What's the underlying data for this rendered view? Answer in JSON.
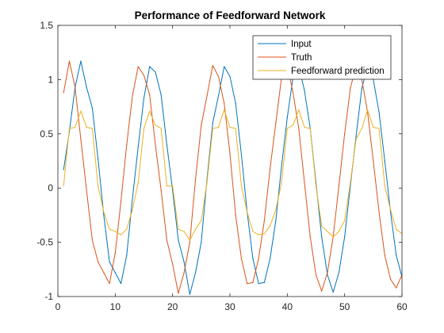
{
  "chart_data": {
    "type": "line",
    "title": "Performance of Feedforward Network",
    "xlabel": "",
    "ylabel": "",
    "xlim": [
      0,
      60
    ],
    "ylim": [
      -1,
      1.5
    ],
    "xticks": [
      0,
      10,
      20,
      30,
      40,
      50,
      60
    ],
    "yticks": [
      -1,
      -0.5,
      0,
      0.5,
      1,
      1.5
    ],
    "grid": false,
    "legend_position": "top-right",
    "series": [
      {
        "name": "Input",
        "color": "#0072BD",
        "x": [
          1,
          2,
          3,
          4,
          5,
          6,
          7,
          8,
          9,
          10,
          11,
          12,
          13,
          14,
          15,
          16,
          17,
          18,
          19,
          20,
          21,
          22,
          23,
          24,
          25,
          26,
          27,
          28,
          29,
          30,
          31,
          32,
          33,
          34,
          35,
          36,
          37,
          38,
          39,
          40,
          41,
          42,
          43,
          44,
          45,
          46,
          47,
          48,
          49,
          50,
          51,
          52,
          53,
          54,
          55,
          56,
          57,
          58,
          59,
          60
        ],
        "values": [
          0.17,
          0.52,
          0.93,
          1.17,
          0.93,
          0.74,
          0.27,
          -0.25,
          -0.68,
          -0.78,
          -0.88,
          -0.62,
          -0.1,
          0.38,
          0.83,
          1.12,
          1.07,
          0.86,
          0.4,
          -0.02,
          -0.48,
          -0.68,
          -0.98,
          -0.78,
          -0.5,
          0.08,
          0.6,
          0.85,
          1.12,
          1.03,
          0.78,
          0.31,
          -0.22,
          -0.65,
          -0.88,
          -0.87,
          -0.65,
          -0.3,
          0.2,
          0.65,
          1.02,
          1.12,
          0.9,
          0.55,
          0.05,
          -0.45,
          -0.8,
          -0.96,
          -0.78,
          -0.45,
          0.02,
          0.48,
          0.92,
          1.12,
          1.0,
          0.7,
          0.25,
          -0.22,
          -0.62,
          -0.82
        ]
      },
      {
        "name": "Truth",
        "color": "#D95319",
        "x": [
          1,
          2,
          3,
          4,
          5,
          6,
          7,
          8,
          9,
          10,
          11,
          12,
          13,
          14,
          15,
          16,
          17,
          18,
          19,
          20,
          21,
          22,
          23,
          24,
          25,
          26,
          27,
          28,
          29,
          30,
          31,
          32,
          33,
          34,
          35,
          36,
          37,
          38,
          39,
          40,
          41,
          42,
          43,
          44,
          45,
          46,
          47,
          48,
          49,
          50,
          51,
          52,
          53,
          54,
          55,
          56,
          57,
          58,
          59,
          60
        ],
        "values": [
          0.88,
          1.17,
          0.93,
          0.45,
          -0.02,
          -0.48,
          -0.68,
          -0.78,
          -0.88,
          -0.6,
          -0.12,
          0.4,
          0.85,
          1.12,
          1.04,
          0.86,
          0.4,
          -0.02,
          -0.48,
          -0.7,
          -0.97,
          -0.78,
          -0.5,
          0.08,
          0.58,
          0.85,
          1.13,
          1.03,
          0.78,
          0.32,
          -0.25,
          -0.65,
          -0.88,
          -0.87,
          -0.65,
          -0.3,
          0.18,
          0.6,
          1.02,
          1.13,
          0.88,
          0.55,
          0.05,
          -0.45,
          -0.8,
          -0.95,
          -0.78,
          -0.45,
          0.02,
          0.5,
          0.92,
          1.13,
          1.0,
          0.7,
          0.25,
          -0.22,
          -0.62,
          -0.84,
          -0.92,
          -0.8
        ]
      },
      {
        "name": "Feedforward prediction",
        "color": "#EDB120",
        "x": [
          1,
          2,
          3,
          4,
          5,
          6,
          7,
          8,
          9,
          10,
          11,
          12,
          13,
          14,
          15,
          16,
          17,
          18,
          19,
          20,
          21,
          22,
          23,
          24,
          25,
          26,
          27,
          28,
          29,
          30,
          31,
          32,
          33,
          34,
          35,
          36,
          37,
          38,
          39,
          40,
          41,
          42,
          43,
          44,
          45,
          46,
          47,
          48,
          49,
          50,
          51,
          52,
          53,
          54,
          55,
          56,
          57,
          58,
          59,
          60
        ],
        "values": [
          0.02,
          0.55,
          0.56,
          0.71,
          0.56,
          0.55,
          0.02,
          -0.22,
          -0.38,
          -0.4,
          -0.43,
          -0.38,
          -0.2,
          0.05,
          0.55,
          0.71,
          0.58,
          0.55,
          0.02,
          0.02,
          -0.38,
          -0.4,
          -0.48,
          -0.38,
          -0.3,
          0.05,
          0.55,
          0.56,
          0.72,
          0.56,
          0.55,
          0.02,
          -0.22,
          -0.4,
          -0.43,
          -0.42,
          -0.35,
          -0.2,
          0.05,
          0.55,
          0.58,
          0.72,
          0.56,
          0.55,
          0.02,
          -0.35,
          -0.4,
          -0.45,
          -0.4,
          -0.3,
          0.05,
          0.45,
          0.55,
          0.72,
          0.56,
          0.55,
          0.02,
          -0.2,
          -0.38,
          -0.42
        ]
      }
    ]
  }
}
